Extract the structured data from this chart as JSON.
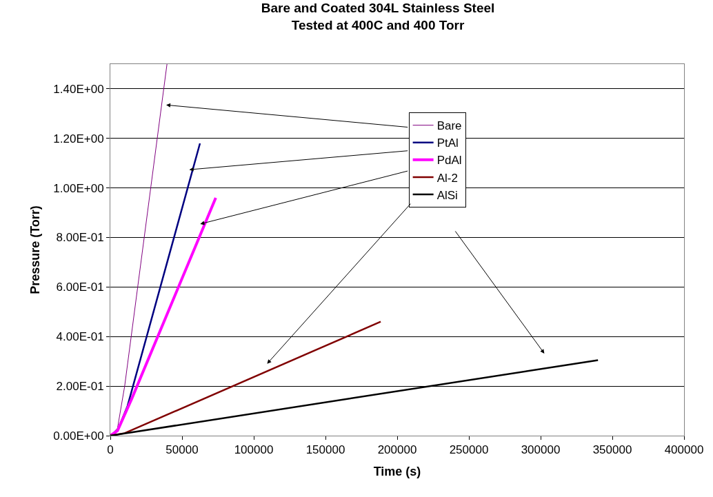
{
  "chart_data": {
    "type": "line",
    "title": "Bare and Coated 304L Stainless Steel\nTested at 400C and 400 Torr",
    "xlabel": "Time (s)",
    "ylabel": "Pressure (Torr)",
    "xlim": [
      0,
      400000
    ],
    "xticks": [
      0,
      50000,
      100000,
      150000,
      200000,
      250000,
      300000,
      350000,
      400000
    ],
    "ylim": [
      0,
      1.5
    ],
    "yticks": [
      {
        "value": 0,
        "label": "0.00E+00"
      },
      {
        "value": 0.2,
        "label": "2.00E-01"
      },
      {
        "value": 0.4,
        "label": "4.00E-01"
      },
      {
        "value": 0.6,
        "label": "6.00E-01"
      },
      {
        "value": 0.8,
        "label": "8.00E-01"
      },
      {
        "value": 1.0,
        "label": "1.00E+00"
      },
      {
        "value": 1.2,
        "label": "1.20E+00"
      },
      {
        "value": 1.4,
        "label": "1.40E+00"
      }
    ],
    "grid": "y",
    "legend": "top",
    "marker": "none",
    "line_style": "solid",
    "series": [
      {
        "name": "Bare",
        "color": "#800080",
        "x": [
          0,
          5000,
          10000,
          39500
        ],
        "values": [
          0,
          0.03,
          0.2,
          1.5
        ]
      },
      {
        "name": "PtAl",
        "color": "#000080",
        "x": [
          0,
          5000,
          12000,
          62500
        ],
        "values": [
          0,
          0.02,
          0.12,
          1.18
        ]
      },
      {
        "name": "PdAl",
        "color": "#ff00ff",
        "x": [
          0,
          5000,
          15000,
          73500
        ],
        "values": [
          0,
          0.02,
          0.15,
          0.96
        ]
      },
      {
        "name": "Al-2",
        "color": "#800000",
        "x": [
          0,
          10000,
          188500
        ],
        "values": [
          0,
          0.01,
          0.46
        ]
      },
      {
        "name": "AlSi",
        "color": "#000000",
        "x": [
          0,
          340000
        ],
        "values": [
          0,
          0.305
        ]
      }
    ]
  }
}
